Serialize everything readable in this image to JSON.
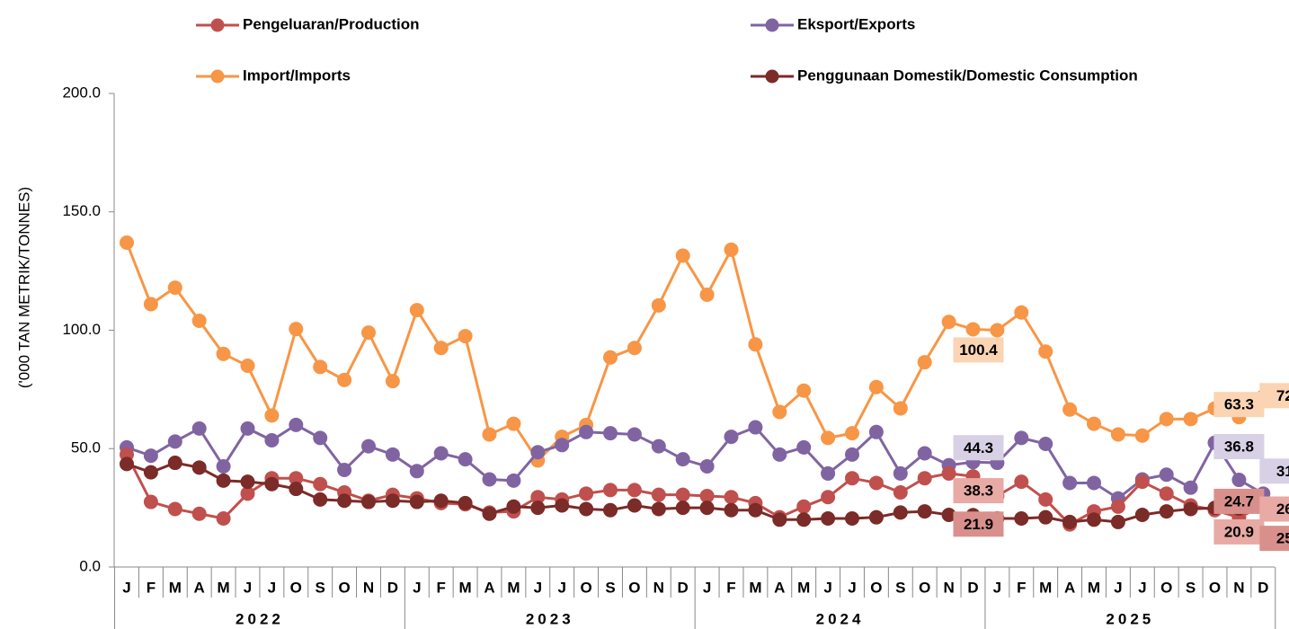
{
  "chart_data": {
    "type": "line",
    "y_label": "('000 TAN METRIK/TONNES)",
    "ylim": [
      0,
      200
    ],
    "yticks": [
      {
        "value": 0,
        "label": "0.0"
      },
      {
        "value": 50,
        "label": "50.0"
      },
      {
        "value": 100,
        "label": "100.0"
      },
      {
        "value": 150,
        "label": "150.0"
      },
      {
        "value": 200,
        "label": "200.0"
      }
    ],
    "categories": [
      "J",
      "F",
      "M",
      "A",
      "M",
      "J",
      "J",
      "O",
      "S",
      "O",
      "N",
      "D",
      "J",
      "F",
      "M",
      "A",
      "M",
      "J",
      "J",
      "O",
      "S",
      "O",
      "N",
      "D",
      "J",
      "F",
      "M",
      "A",
      "M",
      "J",
      "J",
      "O",
      "S",
      "O",
      "N",
      "D",
      "J",
      "F",
      "M",
      "A",
      "M",
      "J",
      "J",
      "O",
      "S",
      "O",
      "N",
      "D"
    ],
    "years": [
      "2022",
      "2023",
      "2024",
      "2025"
    ],
    "series": [
      {
        "name": "Pengeluaran/Production",
        "color": "#c0504d",
        "values": [
          47.5,
          27.5,
          24.5,
          22.5,
          20.5,
          31,
          37.5,
          37.5,
          35,
          31.5,
          28,
          30.5,
          29,
          27,
          26.5,
          23,
          23.5,
          29.5,
          28.5,
          31,
          32.5,
          32.5,
          30.5,
          30.5,
          30,
          29.5,
          27,
          21,
          25.5,
          29.5,
          37.5,
          35.5,
          31.5,
          37.5,
          39.5,
          38.3,
          30,
          36,
          28.5,
          18,
          23.5,
          25.5,
          36,
          31,
          26,
          24,
          20.9,
          26
        ]
      },
      {
        "name": "Eksport/Exports",
        "color": "#8064a2",
        "values": [
          50.5,
          47,
          53,
          58.5,
          42.5,
          58.5,
          53.5,
          60,
          54.5,
          41,
          51,
          47.5,
          40.5,
          48,
          45.5,
          37,
          36.5,
          48.5,
          51.5,
          57,
          56.5,
          56,
          51,
          45.5,
          42.5,
          55,
          59,
          47.5,
          50.5,
          39.5,
          47.5,
          57,
          39.5,
          48,
          43,
          44.3,
          44,
          54.5,
          52,
          35.5,
          35.5,
          29,
          37,
          39,
          33.5,
          52.5,
          36.8,
          31
        ]
      },
      {
        "name": "Import/Imports",
        "color": "#f79646",
        "values": [
          137,
          111,
          118,
          104,
          90,
          85,
          64,
          100.5,
          84.5,
          79,
          99,
          78.5,
          108.5,
          92.5,
          97.5,
          56,
          60.5,
          45,
          55,
          60,
          88.5,
          92.5,
          110.5,
          131.5,
          115,
          134,
          94,
          65.5,
          74.5,
          54.5,
          56.5,
          76,
          67,
          86.5,
          103.5,
          100.4,
          100,
          107.5,
          91,
          66.5,
          60.5,
          56,
          55.5,
          62.5,
          62.5,
          67,
          63.3,
          72
        ]
      },
      {
        "name": "Penggunaan Domestik/Domestic Consumption",
        "color": "#7b2b28",
        "values": [
          43.5,
          40,
          44,
          42,
          36.5,
          36,
          35,
          33,
          28.5,
          28,
          27.5,
          28,
          27.5,
          28,
          27,
          22.5,
          25.5,
          25,
          26,
          24.5,
          24,
          26,
          24.5,
          25,
          25,
          24,
          24,
          20,
          20,
          20.5,
          20.5,
          21,
          23,
          23.5,
          22,
          21.9,
          20.5,
          20.5,
          21,
          19,
          20,
          19,
          22,
          23.5,
          24.5,
          25,
          24.7,
          25
        ]
      }
    ]
  }
}
